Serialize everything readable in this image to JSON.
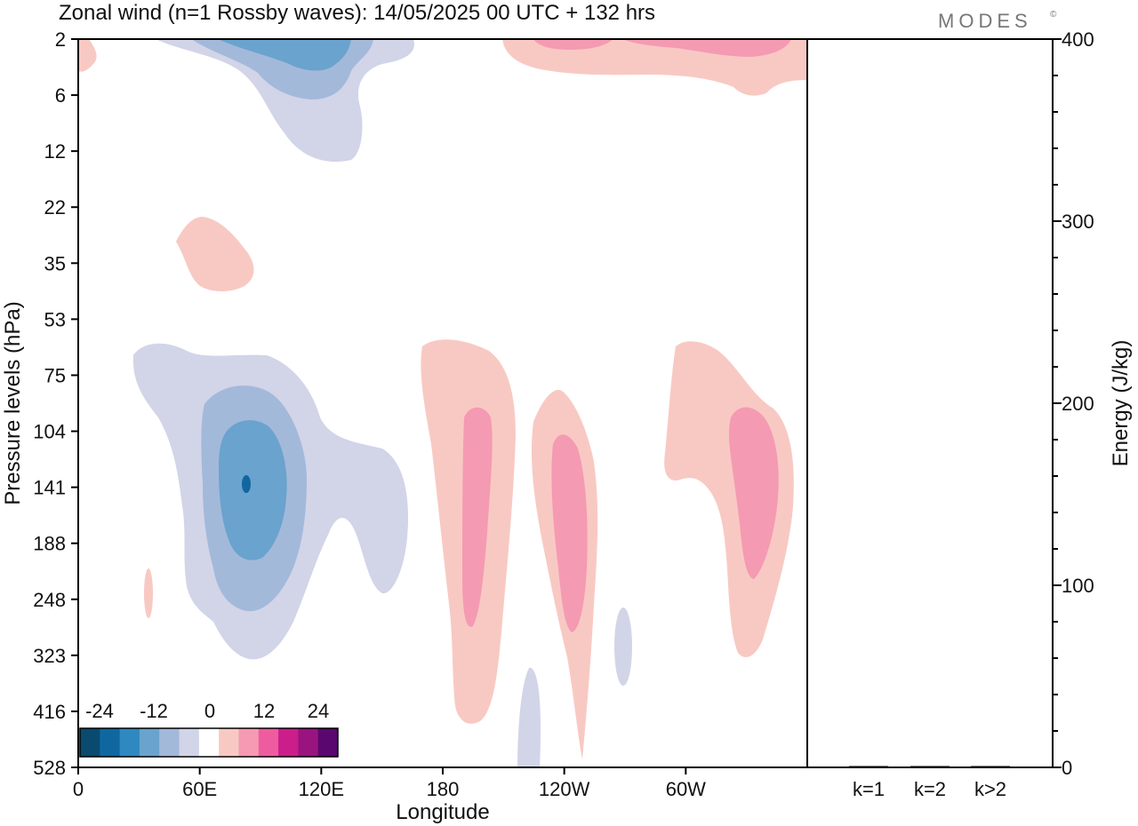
{
  "header": {
    "title": "Zonal wind (n=1 Rossby waves):  14/05/2025  00 UTC  + 132 hrs",
    "brand": "MODES",
    "brand_mark": "©"
  },
  "chart_data": {
    "type": "heatmap",
    "xlabel": "Longitude",
    "ylabel": "Pressure levels (hPa)",
    "x_ticks": [
      "0",
      "60E",
      "120E",
      "180",
      "120W",
      "60W"
    ],
    "x_range_deg": [
      0,
      360
    ],
    "y_ticks": [
      "2",
      "6",
      "12",
      "22",
      "35",
      "53",
      "75",
      "104",
      "141",
      "188",
      "248",
      "323",
      "416",
      "528"
    ],
    "right_panel": {
      "ylabel": "Energy (J/kg)",
      "y_ticks": [
        "0",
        "100",
        "200",
        "300",
        "400"
      ],
      "ylim": [
        0,
        400
      ],
      "categories": [
        "k=1",
        "k=2",
        "k>2"
      ],
      "values": [
        0.5,
        0.3,
        0.4
      ]
    },
    "colorbar": {
      "labels": [
        "-24",
        "-12",
        "0",
        "12",
        "24"
      ],
      "colors": [
        "#0b4a70",
        "#1067a0",
        "#2f88c0",
        "#6aa3cd",
        "#a3b9da",
        "#d2d4e8",
        "#ffffff",
        "#f8c9c3",
        "#f59ab3",
        "#ee5c9f",
        "#cb1e8b",
        "#9a1480",
        "#5a0870"
      ]
    }
  }
}
